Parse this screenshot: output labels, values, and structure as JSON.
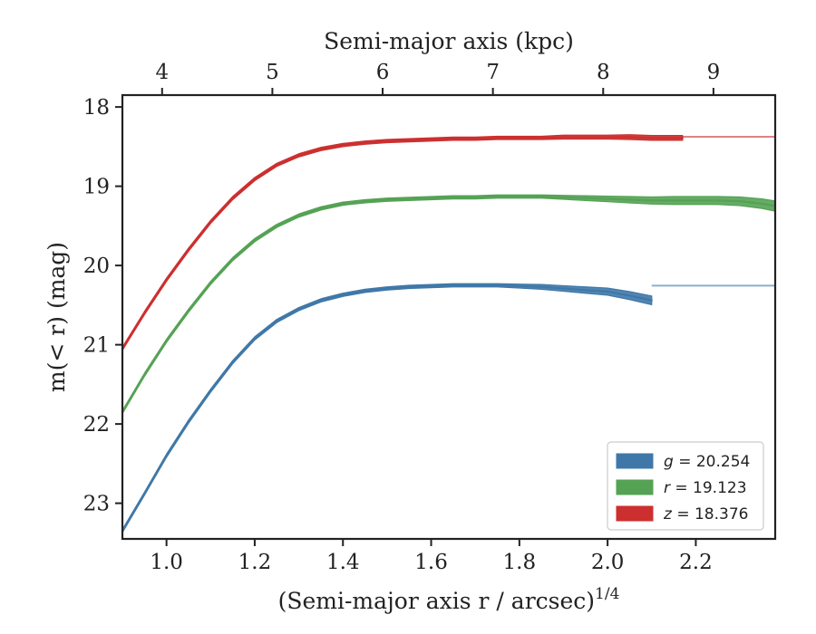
{
  "chart_data": {
    "type": "line",
    "xlabel": "(Semi-major axis r / arcsec)",
    "xlabel_exponent": "1/4",
    "ylabel": "m(< r) (mag)",
    "top_xlabel": "Semi-major axis (kpc)",
    "xlim": [
      0.9,
      2.38
    ],
    "ylim": [
      23.45,
      17.85
    ],
    "y_inverted": true,
    "x_ticks": [
      1.0,
      1.2,
      1.4,
      1.6,
      1.8,
      2.0,
      2.2
    ],
    "x_tick_labels": [
      "1.0",
      "1.2",
      "1.4",
      "1.6",
      "1.8",
      "2.0",
      "2.2"
    ],
    "y_ticks": [
      18,
      19,
      20,
      21,
      22,
      23
    ],
    "y_tick_labels": [
      "18",
      "19",
      "20",
      "21",
      "22",
      "23"
    ],
    "top_ticks_kpc": [
      4,
      5,
      6,
      7,
      8,
      9
    ],
    "top_tick_labels": [
      "4",
      "5",
      "6",
      "7",
      "8",
      "9"
    ],
    "top_tick_positions_x": [
      0.99,
      1.24,
      1.49,
      1.74,
      1.99,
      2.24
    ],
    "grid": false,
    "legend_position": "lower-right",
    "series": [
      {
        "name": "g = 20.254",
        "legend_var": "g",
        "legend_value": "20.254",
        "color": "#3f78a8",
        "asymptote": 20.254,
        "x": [
          0.9,
          0.95,
          1.0,
          1.05,
          1.1,
          1.15,
          1.2,
          1.25,
          1.3,
          1.35,
          1.4,
          1.45,
          1.5,
          1.55,
          1.6,
          1.65,
          1.7,
          1.75,
          1.8,
          1.85,
          1.9,
          1.95,
          2.0,
          2.05,
          2.1
        ],
        "y": [
          23.35,
          22.88,
          22.4,
          21.97,
          21.58,
          21.22,
          20.92,
          20.7,
          20.55,
          20.44,
          20.37,
          20.32,
          20.29,
          20.27,
          20.26,
          20.25,
          20.25,
          20.25,
          20.26,
          20.27,
          20.29,
          20.31,
          20.33,
          20.38,
          20.44
        ],
        "band_half_width": [
          0.02,
          0.02,
          0.02,
          0.02,
          0.02,
          0.02,
          0.02,
          0.02,
          0.02,
          0.02,
          0.02,
          0.02,
          0.02,
          0.02,
          0.02,
          0.02,
          0.02,
          0.02,
          0.025,
          0.03,
          0.035,
          0.04,
          0.045,
          0.05,
          0.055
        ]
      },
      {
        "name": "r = 19.123",
        "legend_var": "r",
        "legend_value": "19.123",
        "color": "#55a255",
        "asymptote": 19.123,
        "x": [
          0.9,
          0.95,
          1.0,
          1.05,
          1.1,
          1.15,
          1.2,
          1.25,
          1.3,
          1.35,
          1.4,
          1.45,
          1.5,
          1.55,
          1.6,
          1.65,
          1.7,
          1.75,
          1.8,
          1.85,
          1.9,
          1.95,
          2.0,
          2.05,
          2.1,
          2.15,
          2.2,
          2.25,
          2.3,
          2.35,
          2.38
        ],
        "y": [
          21.85,
          21.38,
          20.95,
          20.57,
          20.22,
          19.92,
          19.68,
          19.5,
          19.37,
          19.28,
          19.22,
          19.19,
          19.17,
          19.16,
          19.15,
          19.14,
          19.14,
          19.13,
          19.13,
          19.13,
          19.14,
          19.15,
          19.16,
          19.17,
          19.18,
          19.18,
          19.18,
          19.18,
          19.19,
          19.22,
          19.25
        ],
        "band_half_width": [
          0.02,
          0.02,
          0.02,
          0.02,
          0.02,
          0.02,
          0.02,
          0.02,
          0.02,
          0.02,
          0.02,
          0.02,
          0.02,
          0.02,
          0.02,
          0.02,
          0.02,
          0.02,
          0.02,
          0.02,
          0.025,
          0.03,
          0.035,
          0.04,
          0.045,
          0.05,
          0.05,
          0.05,
          0.055,
          0.06,
          0.065
        ]
      },
      {
        "name": "z = 18.376",
        "legend_var": "z",
        "legend_value": "18.376",
        "color": "#cc2f2f",
        "asymptote": 18.376,
        "x": [
          0.9,
          0.95,
          1.0,
          1.05,
          1.1,
          1.15,
          1.2,
          1.25,
          1.3,
          1.35,
          1.4,
          1.45,
          1.5,
          1.55,
          1.6,
          1.65,
          1.7,
          1.75,
          1.8,
          1.85,
          1.9,
          1.95,
          2.0,
          2.05,
          2.1,
          2.17
        ],
        "y": [
          21.05,
          20.6,
          20.18,
          19.8,
          19.45,
          19.15,
          18.91,
          18.73,
          18.61,
          18.53,
          18.48,
          18.45,
          18.43,
          18.42,
          18.41,
          18.4,
          18.4,
          18.39,
          18.39,
          18.39,
          18.38,
          18.38,
          18.38,
          18.38,
          18.39,
          18.39
        ],
        "band_half_width": [
          0.02,
          0.02,
          0.02,
          0.02,
          0.02,
          0.02,
          0.02,
          0.02,
          0.02,
          0.02,
          0.02,
          0.02,
          0.02,
          0.02,
          0.02,
          0.02,
          0.02,
          0.02,
          0.02,
          0.02,
          0.025,
          0.025,
          0.025,
          0.03,
          0.03,
          0.03
        ]
      }
    ]
  }
}
